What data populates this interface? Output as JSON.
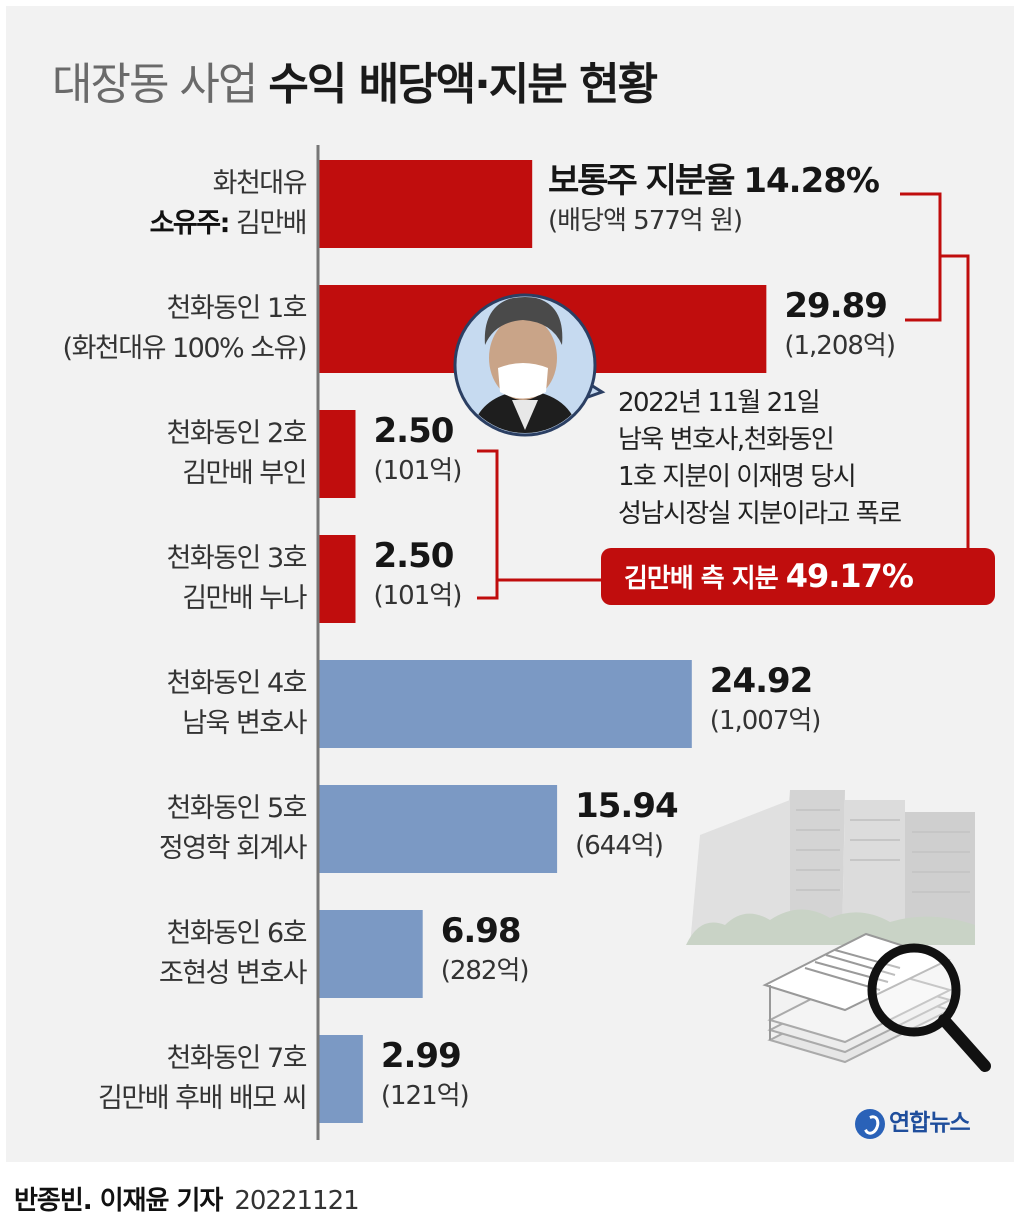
{
  "title": {
    "light": "대장동 사업 ",
    "bold": "수익 배당액·지분 현황"
  },
  "byline": {
    "name": "반종빈. 이재윤 기자",
    "date": "20221121"
  },
  "logo": {
    "text": "연합뉴스"
  },
  "note": {
    "lines": [
      "2022년 11월 21일",
      "남욱 변호사,천화동인",
      "1호 지분이 이재명 당시",
      "성남시장실 지분이라고 폭로"
    ]
  },
  "sum_label": {
    "prefix": "김만배 측 지분 ",
    "value": "49.17%"
  },
  "colors": {
    "red": "#c00d0d",
    "blue": "#7b99c4",
    "axis": "#777777"
  },
  "icons": [
    "portrait-photo",
    "apartment-building-illustration",
    "document-stack-icon",
    "magnifier-icon"
  ],
  "chart_data": {
    "type": "bar",
    "orientation": "horizontal",
    "unit": "%",
    "categories": [
      {
        "line1": "화천대유",
        "line2_bold": "소유주:",
        "line2": " 김만배"
      },
      {
        "line1": "천화동인 1호",
        "line2": "(화천대유 100% 소유)"
      },
      {
        "line1": "천화동인 2호",
        "line2": "김만배 부인"
      },
      {
        "line1": "천화동인 3호",
        "line2": "김만배 누나"
      },
      {
        "line1": "천화동인 4호",
        "line2": "남욱 변호사"
      },
      {
        "line1": "천화동인 5호",
        "line2": "정영학 회계사"
      },
      {
        "line1": "천화동인 6호",
        "line2": "조현성 변호사"
      },
      {
        "line1": "천화동인 7호",
        "line2": "김만배 후배 배모 씨"
      }
    ],
    "values": [
      14.28,
      29.89,
      2.5,
      2.5,
      24.92,
      15.94,
      6.98,
      2.99
    ],
    "value_labels": [
      "14.28%",
      "29.89",
      "2.50",
      "2.50",
      "24.92",
      "15.94",
      "6.98",
      "2.99"
    ],
    "first_value_prefix": "보통주 지분율 ",
    "dividend_labels": [
      "(배당액 577억 원)",
      "(1,208억)",
      "(101억)",
      "(101억)",
      "(1,007억)",
      "(644억)",
      "(282억)",
      "(121억)"
    ],
    "dividends_100m_won": [
      577,
      1208,
      101,
      101,
      1007,
      644,
      282,
      121
    ],
    "groups": [
      "kim",
      "kim",
      "kim",
      "kim",
      "other",
      "other",
      "other",
      "other"
    ],
    "xlim": [
      0,
      30
    ],
    "grid": false,
    "legend": "none"
  }
}
